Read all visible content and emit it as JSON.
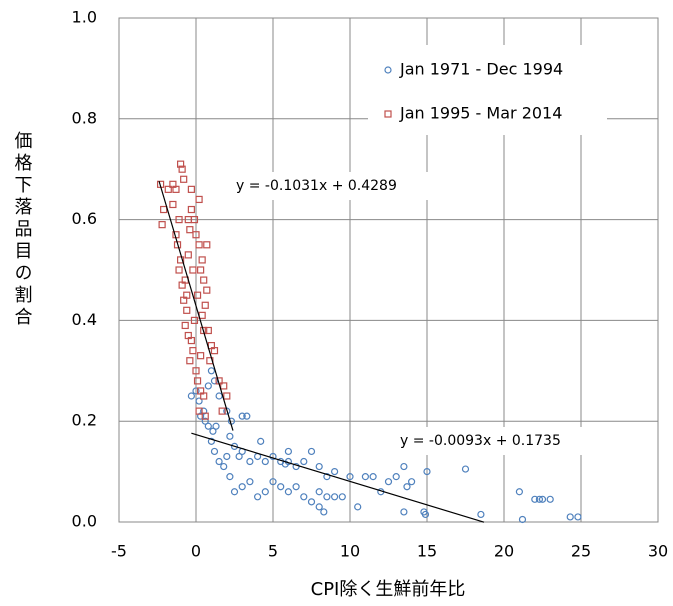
{
  "chart_data": {
    "type": "scatter",
    "x_label": "CPI除く生鮮前年比",
    "y_label": "価格下落品目の割合",
    "xlim": [
      -5,
      30
    ],
    "xticks": [
      -5,
      0,
      5,
      10,
      15,
      20,
      25,
      30
    ],
    "ylim": [
      0,
      1
    ],
    "yticks": [
      {
        "value": 0,
        "label": "0.0"
      },
      {
        "value": 0.2,
        "label": "0.2"
      },
      {
        "value": 0.4,
        "label": "0.4"
      },
      {
        "value": 0.6,
        "label": "0.6"
      },
      {
        "value": 0.8,
        "label": "0.8"
      },
      {
        "value": 1,
        "label": "1.0"
      }
    ],
    "grid": true,
    "legend": "upper right",
    "series": [
      {
        "name": "Jan 1971 - Dec 1994",
        "color": "#4f81bd",
        "marker": "circle",
        "x": [
          -0.3,
          0,
          0.2,
          0.5,
          0.8,
          1,
          1.2,
          0.3,
          0.6,
          1.5,
          2,
          2.3,
          3,
          3.3,
          1.1,
          1,
          1.2,
          1.5,
          1.8,
          2,
          2.5,
          2.8,
          3,
          3.5,
          4,
          4.5,
          5,
          5.5,
          6,
          6.5,
          7,
          7.5,
          8,
          8.5,
          9,
          2.2,
          2.5,
          3,
          3.5,
          4,
          4.5,
          5,
          5.5,
          6,
          6.5,
          7,
          7.5,
          8,
          8.5,
          9,
          9.5,
          8.3,
          10,
          11,
          11.5,
          12,
          12.5,
          13,
          13.5,
          13.7,
          14,
          15,
          13.5,
          14.8,
          14.9,
          17.5,
          18.5,
          21,
          21.2,
          22,
          22.5,
          23,
          22.3,
          24.3,
          24.8,
          1.3,
          4.2,
          5.8,
          2.2,
          0.8,
          10.5,
          8,
          6
        ],
        "values": [
          0.25,
          0.26,
          0.24,
          0.22,
          0.27,
          0.3,
          0.28,
          0.21,
          0.2,
          0.25,
          0.22,
          0.2,
          0.21,
          0.21,
          0.18,
          0.16,
          0.14,
          0.12,
          0.11,
          0.13,
          0.15,
          0.13,
          0.14,
          0.12,
          0.13,
          0.12,
          0.13,
          0.12,
          0.12,
          0.11,
          0.12,
          0.14,
          0.11,
          0.09,
          0.1,
          0.09,
          0.06,
          0.07,
          0.08,
          0.05,
          0.06,
          0.08,
          0.07,
          0.06,
          0.07,
          0.05,
          0.04,
          0.06,
          0.05,
          0.05,
          0.05,
          0.02,
          0.09,
          0.09,
          0.09,
          0.06,
          0.08,
          0.09,
          0.11,
          0.07,
          0.08,
          0.1,
          0.02,
          0.02,
          0.015,
          0.105,
          0.015,
          0.06,
          0.005,
          0.045,
          0.045,
          0.045,
          0.045,
          0.01,
          0.01,
          0.19,
          0.16,
          0.115,
          0.17,
          0.19,
          0.03,
          0.03,
          0.14
        ]
      },
      {
        "name": "Jan 1995 - Mar 2014",
        "color": "#c0504d",
        "marker": "square",
        "x": [
          -2.3,
          -2.1,
          -2.2,
          -1.8,
          -1.5,
          -1.3,
          -1.5,
          -1,
          -0.9,
          -0.8,
          -1.1,
          -1.3,
          -1,
          -1.1,
          -0.9,
          -1.2,
          -0.8,
          -0.6,
          -0.7,
          -0.5,
          -0.3,
          -0.2,
          -0.4,
          0,
          0.1,
          0.3,
          0.5,
          0.2,
          0.6,
          -0.5,
          -0.4,
          -0.3,
          -0.1,
          0,
          0.2,
          0.4,
          0.3,
          0.5,
          0.7,
          0.6,
          0.8,
          0.4,
          0.1,
          -0.2,
          -0.5,
          -0.7,
          0.2,
          -0.3,
          0.7,
          0.5,
          1,
          1.2,
          1.5,
          1.8,
          2,
          1.7,
          0.9,
          0.3,
          -0.1,
          -0.6
        ],
        "values": [
          0.67,
          0.62,
          0.59,
          0.66,
          0.67,
          0.66,
          0.63,
          0.71,
          0.7,
          0.68,
          0.6,
          0.57,
          0.52,
          0.5,
          0.47,
          0.55,
          0.44,
          0.42,
          0.39,
          0.37,
          0.36,
          0.34,
          0.32,
          0.3,
          0.28,
          0.26,
          0.25,
          0.22,
          0.21,
          0.6,
          0.58,
          0.62,
          0.6,
          0.57,
          0.55,
          0.52,
          0.5,
          0.48,
          0.46,
          0.43,
          0.38,
          0.41,
          0.45,
          0.5,
          0.53,
          0.48,
          0.64,
          0.66,
          0.55,
          0.38,
          0.35,
          0.34,
          0.28,
          0.27,
          0.25,
          0.22,
          0.32,
          0.33,
          0.4,
          0.45
        ]
      }
    ],
    "trendlines": [
      {
        "label": "y = -0.1031x + 0.4289",
        "slope": -0.1031,
        "intercept": 0.4289,
        "xrange": [
          -2.4,
          2.4
        ]
      },
      {
        "label": "y = -0.0093x + 0.1735",
        "slope": -0.0093,
        "intercept": 0.1735,
        "xrange": [
          -0.3,
          18.7
        ]
      }
    ]
  }
}
